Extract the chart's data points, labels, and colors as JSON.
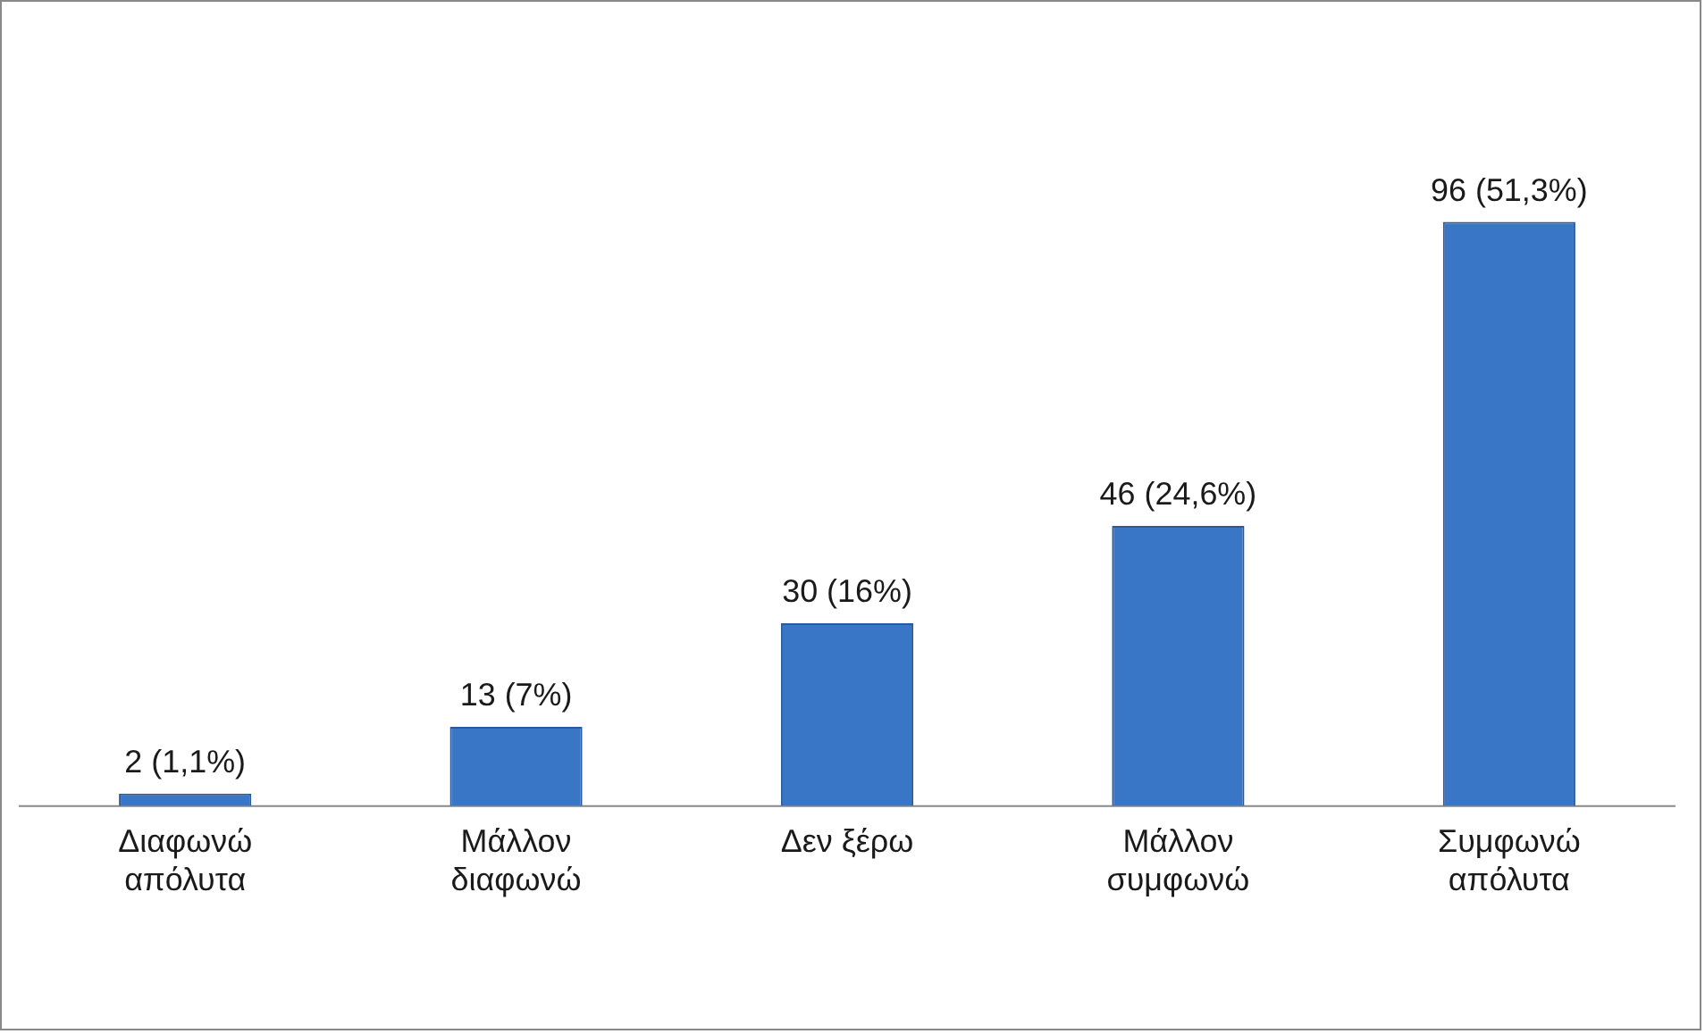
{
  "chart_data": {
    "type": "bar",
    "categories": [
      "Διαφωνώ απόλυτα",
      "Μάλλον διαφωνώ",
      "Δεν ξέρω",
      "Μάλλον συμφωνώ",
      "Συμφωνώ απόλυτα"
    ],
    "values": [
      2,
      13,
      30,
      46,
      96
    ],
    "color": "#3a76c6",
    "value_labels": [
      "2 (1,1%)",
      "13 (7%)",
      "30 (16%)",
      "46 (24,6%)",
      "96 (51,3%)"
    ],
    "grid": false,
    "legend": false,
    "tick_labels": "x"
  }
}
